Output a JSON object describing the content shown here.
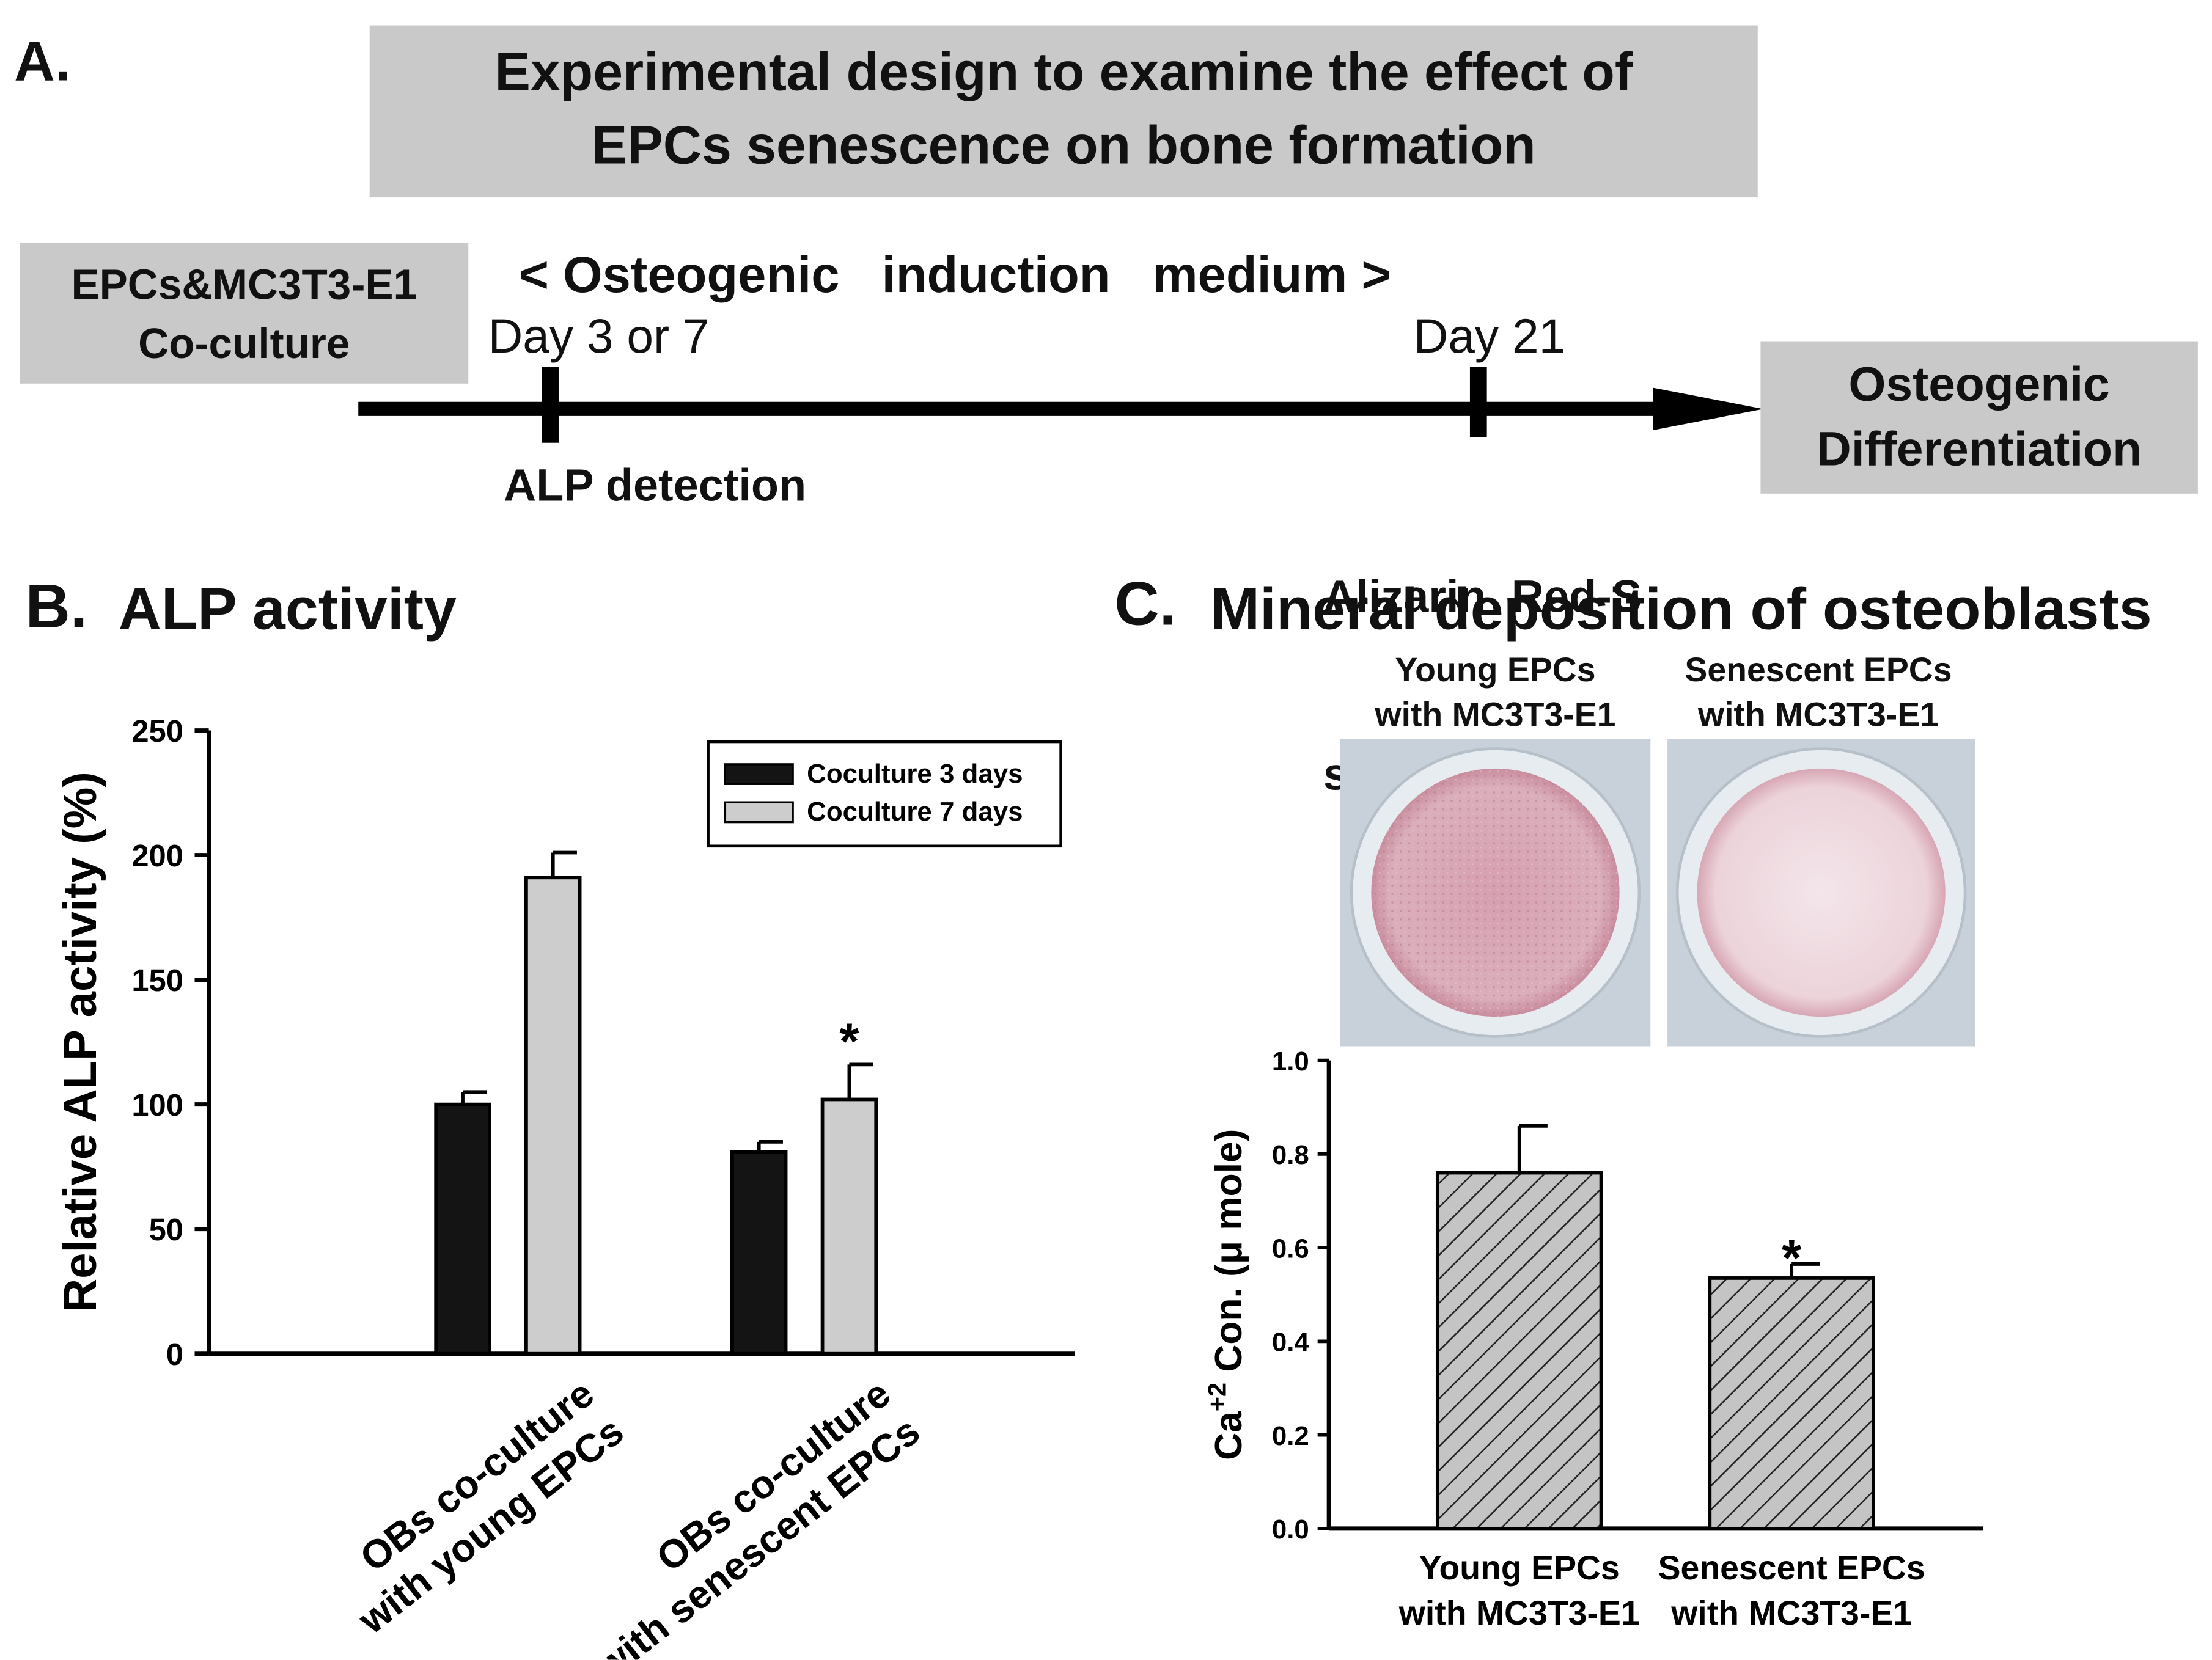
{
  "panel_a": {
    "letter": "A.",
    "title_line1": "Experimental design to examine the effect of",
    "title_line2": "EPCs senescence on bone formation",
    "coculture_line1": "EPCs&MC3T3-E1",
    "coculture_line2": "Co-culture",
    "medium_label": "< Osteogenic   induction   medium >",
    "day1_label": "Day 3 or 7",
    "day2_label": "Day 21",
    "detect1": "ALP detection",
    "detect2_line1": "Alizarin  Red-S",
    "detect2_line2": "staining",
    "outcome_line1": "Osteogenic",
    "outcome_line2": "Differentiation"
  },
  "panel_b": {
    "letter": "B.",
    "title": "ALP activity"
  },
  "panel_c": {
    "letter": "C.",
    "title": "Mineral deposition of osteoblasts",
    "well1_line1": "Young EPCs",
    "well1_line2": "with MC3T3-E1",
    "well2_line1": "Senescent EPCs",
    "well2_line2": "with MC3T3-E1"
  },
  "colors": {
    "box_gray": "#c9c9c9",
    "bar_dark": "#141414",
    "bar_light": "#cdcdcd",
    "hatch_fill": "#bdbdbd",
    "well_young": "#d9a9b6",
    "well_senescent": "#eedbe1"
  },
  "chart_data": [
    {
      "type": "bar",
      "title": "ALP activity",
      "xlabel": "",
      "ylabel": "Relative ALP activity (%)",
      "ylim": [
        0,
        250
      ],
      "yticks": [
        0,
        50,
        100,
        150,
        200,
        250
      ],
      "categories": [
        "OBs co-culture with young EPCs",
        "OBs co-culture with senescent EPCs"
      ],
      "category_lines": [
        [
          "OBs co-culture",
          "with young EPCs"
        ],
        [
          "OBs co-culture",
          "with senescent EPCs"
        ]
      ],
      "series": [
        {
          "name": "Coculture 3 days",
          "values": [
            100,
            81
          ],
          "errors": [
            5,
            4
          ]
        },
        {
          "name": "Coculture 7 days",
          "values": [
            191,
            102
          ],
          "errors": [
            10,
            14
          ]
        }
      ],
      "annotations": [
        {
          "category": 1,
          "series": 1,
          "text": "*"
        }
      ],
      "legend_position": "top-right"
    },
    {
      "type": "bar",
      "title": "Mineral deposition of osteoblasts",
      "xlabel": "",
      "ylabel_prefix": "Ca",
      "ylabel_sup": "+2",
      "ylabel_suffix": " Con. (μ mole)",
      "ylim": [
        0,
        1.0
      ],
      "yticks": [
        "0.0",
        "0.2",
        "0.4",
        "0.6",
        "0.8",
        "1.0"
      ],
      "categories": [
        "Young EPCs with MC3T3-E1",
        "Senescent EPCs with MC3T3-E1"
      ],
      "category_lines": [
        [
          "Young EPCs",
          "with MC3T3-E1"
        ],
        [
          "Senescent EPCs",
          "with MC3T3-E1"
        ]
      ],
      "values": [
        0.76,
        0.535
      ],
      "errors": [
        0.1,
        0.03
      ],
      "annotations": [
        {
          "category": 1,
          "text": "*"
        }
      ]
    }
  ]
}
